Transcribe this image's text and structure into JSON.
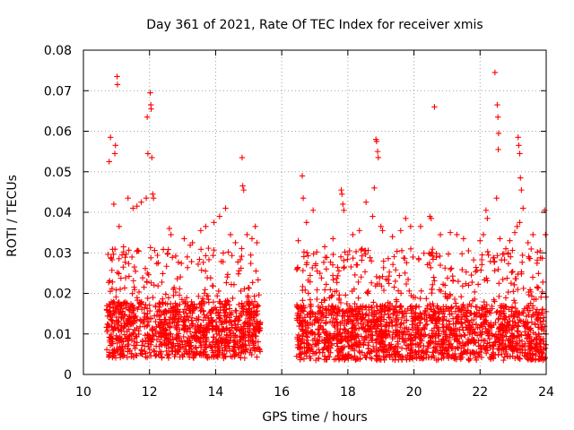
{
  "chart_data": {
    "type": "scatter",
    "title": "Day 361 of 2021, Rate Of TEC Index for receiver xmis",
    "xlabel": "GPS time / hours",
    "ylabel": "ROTI / TECUs",
    "xlim": [
      10,
      24
    ],
    "ylim": [
      0,
      0.08
    ],
    "xticks": [
      10,
      12,
      14,
      16,
      18,
      20,
      22,
      24
    ],
    "xtick_labels": [
      "10",
      "12",
      "14",
      "16",
      "18",
      "20",
      "22",
      "24"
    ],
    "yticks": [
      0,
      0.01,
      0.02,
      0.03,
      0.04,
      0.05,
      0.06,
      0.07,
      0.08
    ],
    "ytick_labels": [
      "0",
      "0.01",
      "0.02",
      "0.03",
      "0.04",
      "0.05",
      "0.06",
      "0.07",
      "0.08"
    ],
    "grid": true,
    "marker": "plus",
    "color": "#ff0000",
    "series": [
      {
        "name": "ROTI",
        "points": [
          [
            10.78,
            0.0525
          ],
          [
            10.82,
            0.0585
          ],
          [
            10.95,
            0.0545
          ],
          [
            10.97,
            0.0565
          ],
          [
            10.92,
            0.042
          ],
          [
            11.02,
            0.0735
          ],
          [
            11.03,
            0.0715
          ],
          [
            11.08,
            0.0365
          ],
          [
            11.35,
            0.0435
          ],
          [
            11.5,
            0.041
          ],
          [
            11.62,
            0.0415
          ],
          [
            11.75,
            0.0425
          ],
          [
            11.9,
            0.0435
          ],
          [
            11.93,
            0.0635
          ],
          [
            11.95,
            0.0545
          ],
          [
            12.02,
            0.0695
          ],
          [
            12.04,
            0.0665
          ],
          [
            12.05,
            0.0655
          ],
          [
            12.07,
            0.0535
          ],
          [
            12.1,
            0.0445
          ],
          [
            12.12,
            0.0435
          ],
          [
            12.6,
            0.036
          ],
          [
            12.65,
            0.0345
          ],
          [
            13.05,
            0.0335
          ],
          [
            13.3,
            0.0325
          ],
          [
            13.55,
            0.0355
          ],
          [
            13.7,
            0.0365
          ],
          [
            13.95,
            0.0375
          ],
          [
            14.12,
            0.039
          ],
          [
            14.3,
            0.041
          ],
          [
            14.45,
            0.0345
          ],
          [
            14.6,
            0.0325
          ],
          [
            14.8,
            0.0535
          ],
          [
            14.82,
            0.0465
          ],
          [
            14.85,
            0.0455
          ],
          [
            14.95,
            0.0345
          ],
          [
            15.1,
            0.0335
          ],
          [
            15.2,
            0.0365
          ],
          [
            15.25,
            0.0325
          ],
          [
            16.5,
            0.033
          ],
          [
            16.62,
            0.049
          ],
          [
            16.65,
            0.0435
          ],
          [
            16.75,
            0.0375
          ],
          [
            16.95,
            0.0405
          ],
          [
            17.3,
            0.0315
          ],
          [
            17.55,
            0.0335
          ],
          [
            17.8,
            0.0455
          ],
          [
            17.82,
            0.0445
          ],
          [
            17.85,
            0.042
          ],
          [
            17.88,
            0.0405
          ],
          [
            18.05,
            0.0305
          ],
          [
            18.15,
            0.0345
          ],
          [
            18.35,
            0.0355
          ],
          [
            18.5,
            0.0305
          ],
          [
            18.55,
            0.0425
          ],
          [
            18.75,
            0.039
          ],
          [
            18.8,
            0.046
          ],
          [
            18.85,
            0.058
          ],
          [
            18.87,
            0.0575
          ],
          [
            18.9,
            0.055
          ],
          [
            18.92,
            0.0535
          ],
          [
            19.0,
            0.0365
          ],
          [
            19.05,
            0.0355
          ],
          [
            19.35,
            0.034
          ],
          [
            19.6,
            0.0355
          ],
          [
            19.75,
            0.0385
          ],
          [
            19.9,
            0.0365
          ],
          [
            20.2,
            0.0365
          ],
          [
            20.48,
            0.039
          ],
          [
            20.52,
            0.0385
          ],
          [
            20.62,
            0.066
          ],
          [
            20.8,
            0.0345
          ],
          [
            21.1,
            0.035
          ],
          [
            21.3,
            0.0345
          ],
          [
            21.5,
            0.0335
          ],
          [
            21.65,
            0.0305
          ],
          [
            22.0,
            0.033
          ],
          [
            22.1,
            0.0345
          ],
          [
            22.18,
            0.0405
          ],
          [
            22.22,
            0.0385
          ],
          [
            22.45,
            0.0745
          ],
          [
            22.52,
            0.0665
          ],
          [
            22.54,
            0.0635
          ],
          [
            22.56,
            0.0595
          ],
          [
            22.55,
            0.0555
          ],
          [
            22.5,
            0.0435
          ],
          [
            22.6,
            0.0335
          ],
          [
            22.78,
            0.031
          ],
          [
            22.9,
            0.033
          ],
          [
            23.05,
            0.035
          ],
          [
            23.12,
            0.0365
          ],
          [
            23.2,
            0.0375
          ],
          [
            23.15,
            0.0585
          ],
          [
            23.17,
            0.0565
          ],
          [
            23.2,
            0.0545
          ],
          [
            23.22,
            0.0485
          ],
          [
            23.25,
            0.0455
          ],
          [
            23.3,
            0.041
          ],
          [
            23.45,
            0.0325
          ],
          [
            23.6,
            0.0345
          ],
          [
            23.82,
            0.0305
          ],
          [
            23.95,
            0.0405
          ],
          [
            23.98,
            0.0345
          ]
        ],
        "dense_segments": [
          {
            "x": [
              10.7,
              15.35
            ],
            "base": [
              0.004,
              0.018
            ],
            "peak": 0.032
          },
          {
            "x": [
              16.45,
              24.0
            ],
            "base": [
              0.0035,
              0.017
            ],
            "peak": 0.031
          }
        ]
      }
    ]
  }
}
